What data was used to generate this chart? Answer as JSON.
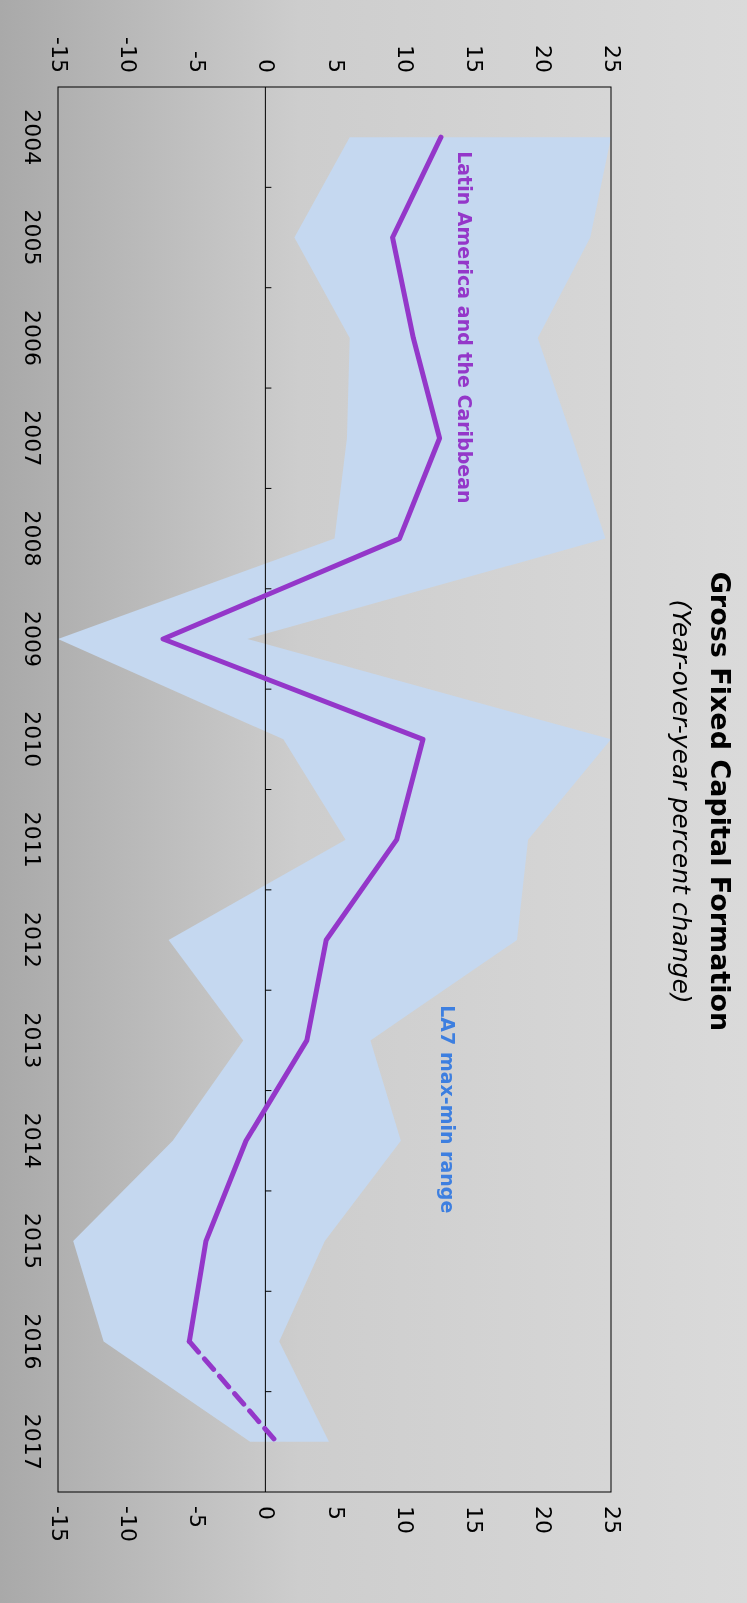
{
  "chart_data": {
    "type": "line",
    "title": "Gross Fixed Capital Formation",
    "subtitle": "(Year-over-year percent change)",
    "categories": [
      "2004",
      "2005",
      "2006",
      "2007",
      "2008",
      "2009",
      "2010",
      "2011",
      "2012",
      "2013",
      "2014",
      "2015",
      "2016",
      "2017"
    ],
    "orientation": "horizontal",
    "xlim": [
      -15,
      25
    ],
    "xticks": [
      -15,
      -10,
      -5,
      0,
      5,
      10,
      15,
      20,
      25
    ],
    "x2lim": [
      -15,
      25
    ],
    "x2ticks": [
      -15,
      -10,
      -5,
      0,
      5,
      10,
      15,
      20,
      25
    ],
    "series": [
      {
        "name": "Latin America and the Caribbean",
        "color": "#9437c9",
        "line_style": "solid",
        "values": [
          12.7,
          9.2,
          10.7,
          12.6,
          9.7,
          -7.4,
          11.4,
          9.5,
          4.4,
          3.0,
          -1.4,
          -4.3,
          -5.5,
          null
        ],
        "lower": [
          6.1,
          2.1,
          6.1,
          5.9,
          5.0,
          -15,
          1.3,
          5.8,
          -7.0,
          -1.6,
          -6.7,
          -13.9,
          -11.7,
          -1.1
        ],
        "upper": [
          25,
          23.5,
          19.7,
          22.2,
          24.6,
          -1.3,
          25,
          19.0,
          18.2,
          7.6,
          9.8,
          4.3,
          1.0,
          4.6
        ]
      },
      {
        "color": "#9437c9",
        "line_style": "dashed",
        "values": [
          null,
          null,
          null,
          null,
          null,
          null,
          null,
          null,
          null,
          null,
          null,
          null,
          -5.5,
          0.8
        ]
      }
    ],
    "annotations": [
      "LA7 max-min range"
    ]
  }
}
